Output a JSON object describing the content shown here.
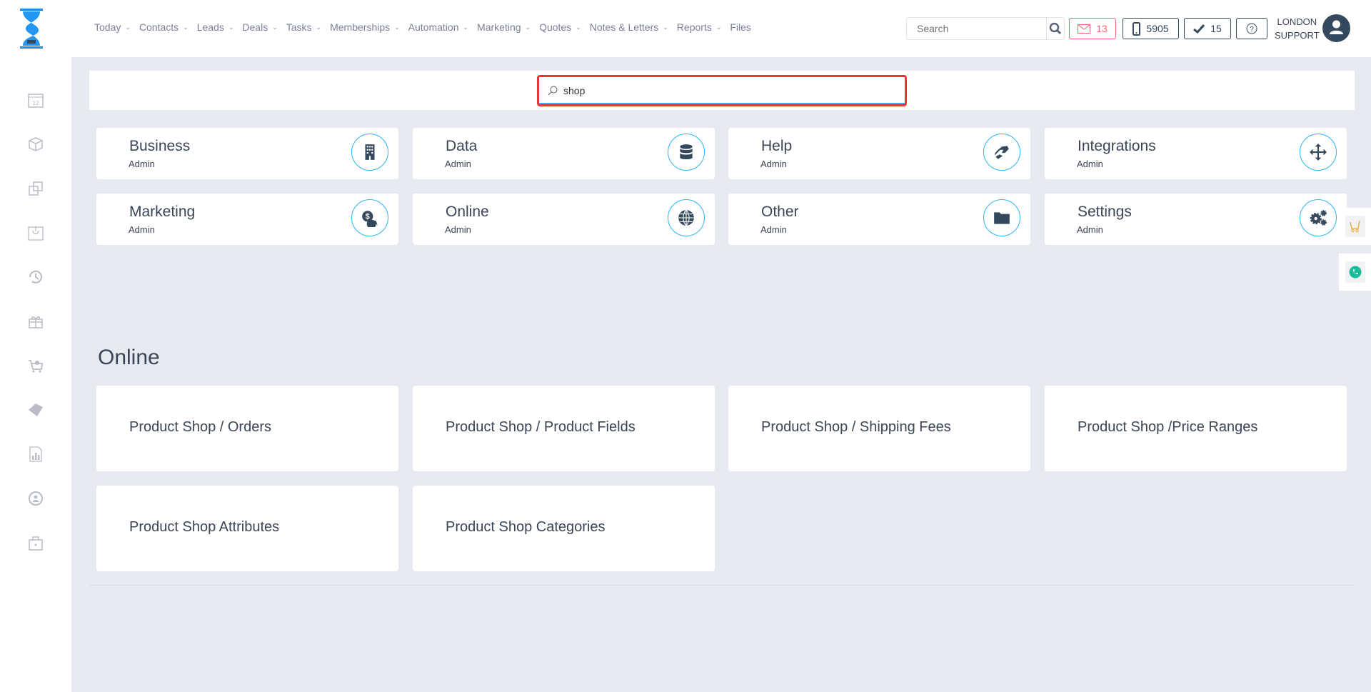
{
  "header": {
    "nav": [
      {
        "label": "Today",
        "dropdown": true
      },
      {
        "label": "Contacts",
        "dropdown": true
      },
      {
        "label": "Leads",
        "dropdown": true
      },
      {
        "label": "Deals",
        "dropdown": true
      },
      {
        "label": "Tasks",
        "dropdown": true
      },
      {
        "label": "Memberships",
        "dropdown": true
      },
      {
        "label": "Automation",
        "dropdown": true
      },
      {
        "label": "Marketing",
        "dropdown": true
      },
      {
        "label": "Quotes",
        "dropdown": true
      },
      {
        "label": "Notes & Letters",
        "dropdown": true
      },
      {
        "label": "Reports",
        "dropdown": true
      },
      {
        "label": "Files",
        "dropdown": false
      }
    ],
    "search_placeholder": "Search",
    "mail_count": "13",
    "phone_count": "5905",
    "tasks_count": "15",
    "user_line1": "LONDON",
    "user_line2": "SUPPORT"
  },
  "settings_search": {
    "value": "shop"
  },
  "categories": [
    {
      "title": "Business",
      "subtitle": "Admin",
      "icon": "building-icon"
    },
    {
      "title": "Data",
      "subtitle": "Admin",
      "icon": "database-icon"
    },
    {
      "title": "Help",
      "subtitle": "Admin",
      "icon": "handshake-icon"
    },
    {
      "title": "Integrations",
      "subtitle": "Admin",
      "icon": "arrows-move-icon"
    },
    {
      "title": "Marketing",
      "subtitle": "Admin",
      "icon": "money-chat-icon"
    },
    {
      "title": "Online",
      "subtitle": "Admin",
      "icon": "globe-icon"
    },
    {
      "title": "Other",
      "subtitle": "Admin",
      "icon": "folder-icon"
    },
    {
      "title": "Settings",
      "subtitle": "Admin",
      "icon": "gears-icon"
    }
  ],
  "results": {
    "section": "Online",
    "items": [
      "Product Shop / Orders",
      "Product Shop / Product Fields",
      "Product Shop / Shipping Fees",
      "Product Shop /Price Ranges",
      "Product Shop Attributes",
      "Product Shop Categories"
    ]
  },
  "colors": {
    "accent": "#2bb5f5",
    "dark": "#34495e",
    "alert": "#e53935",
    "cart": "#f5a623",
    "phone": "#1abc9c"
  }
}
